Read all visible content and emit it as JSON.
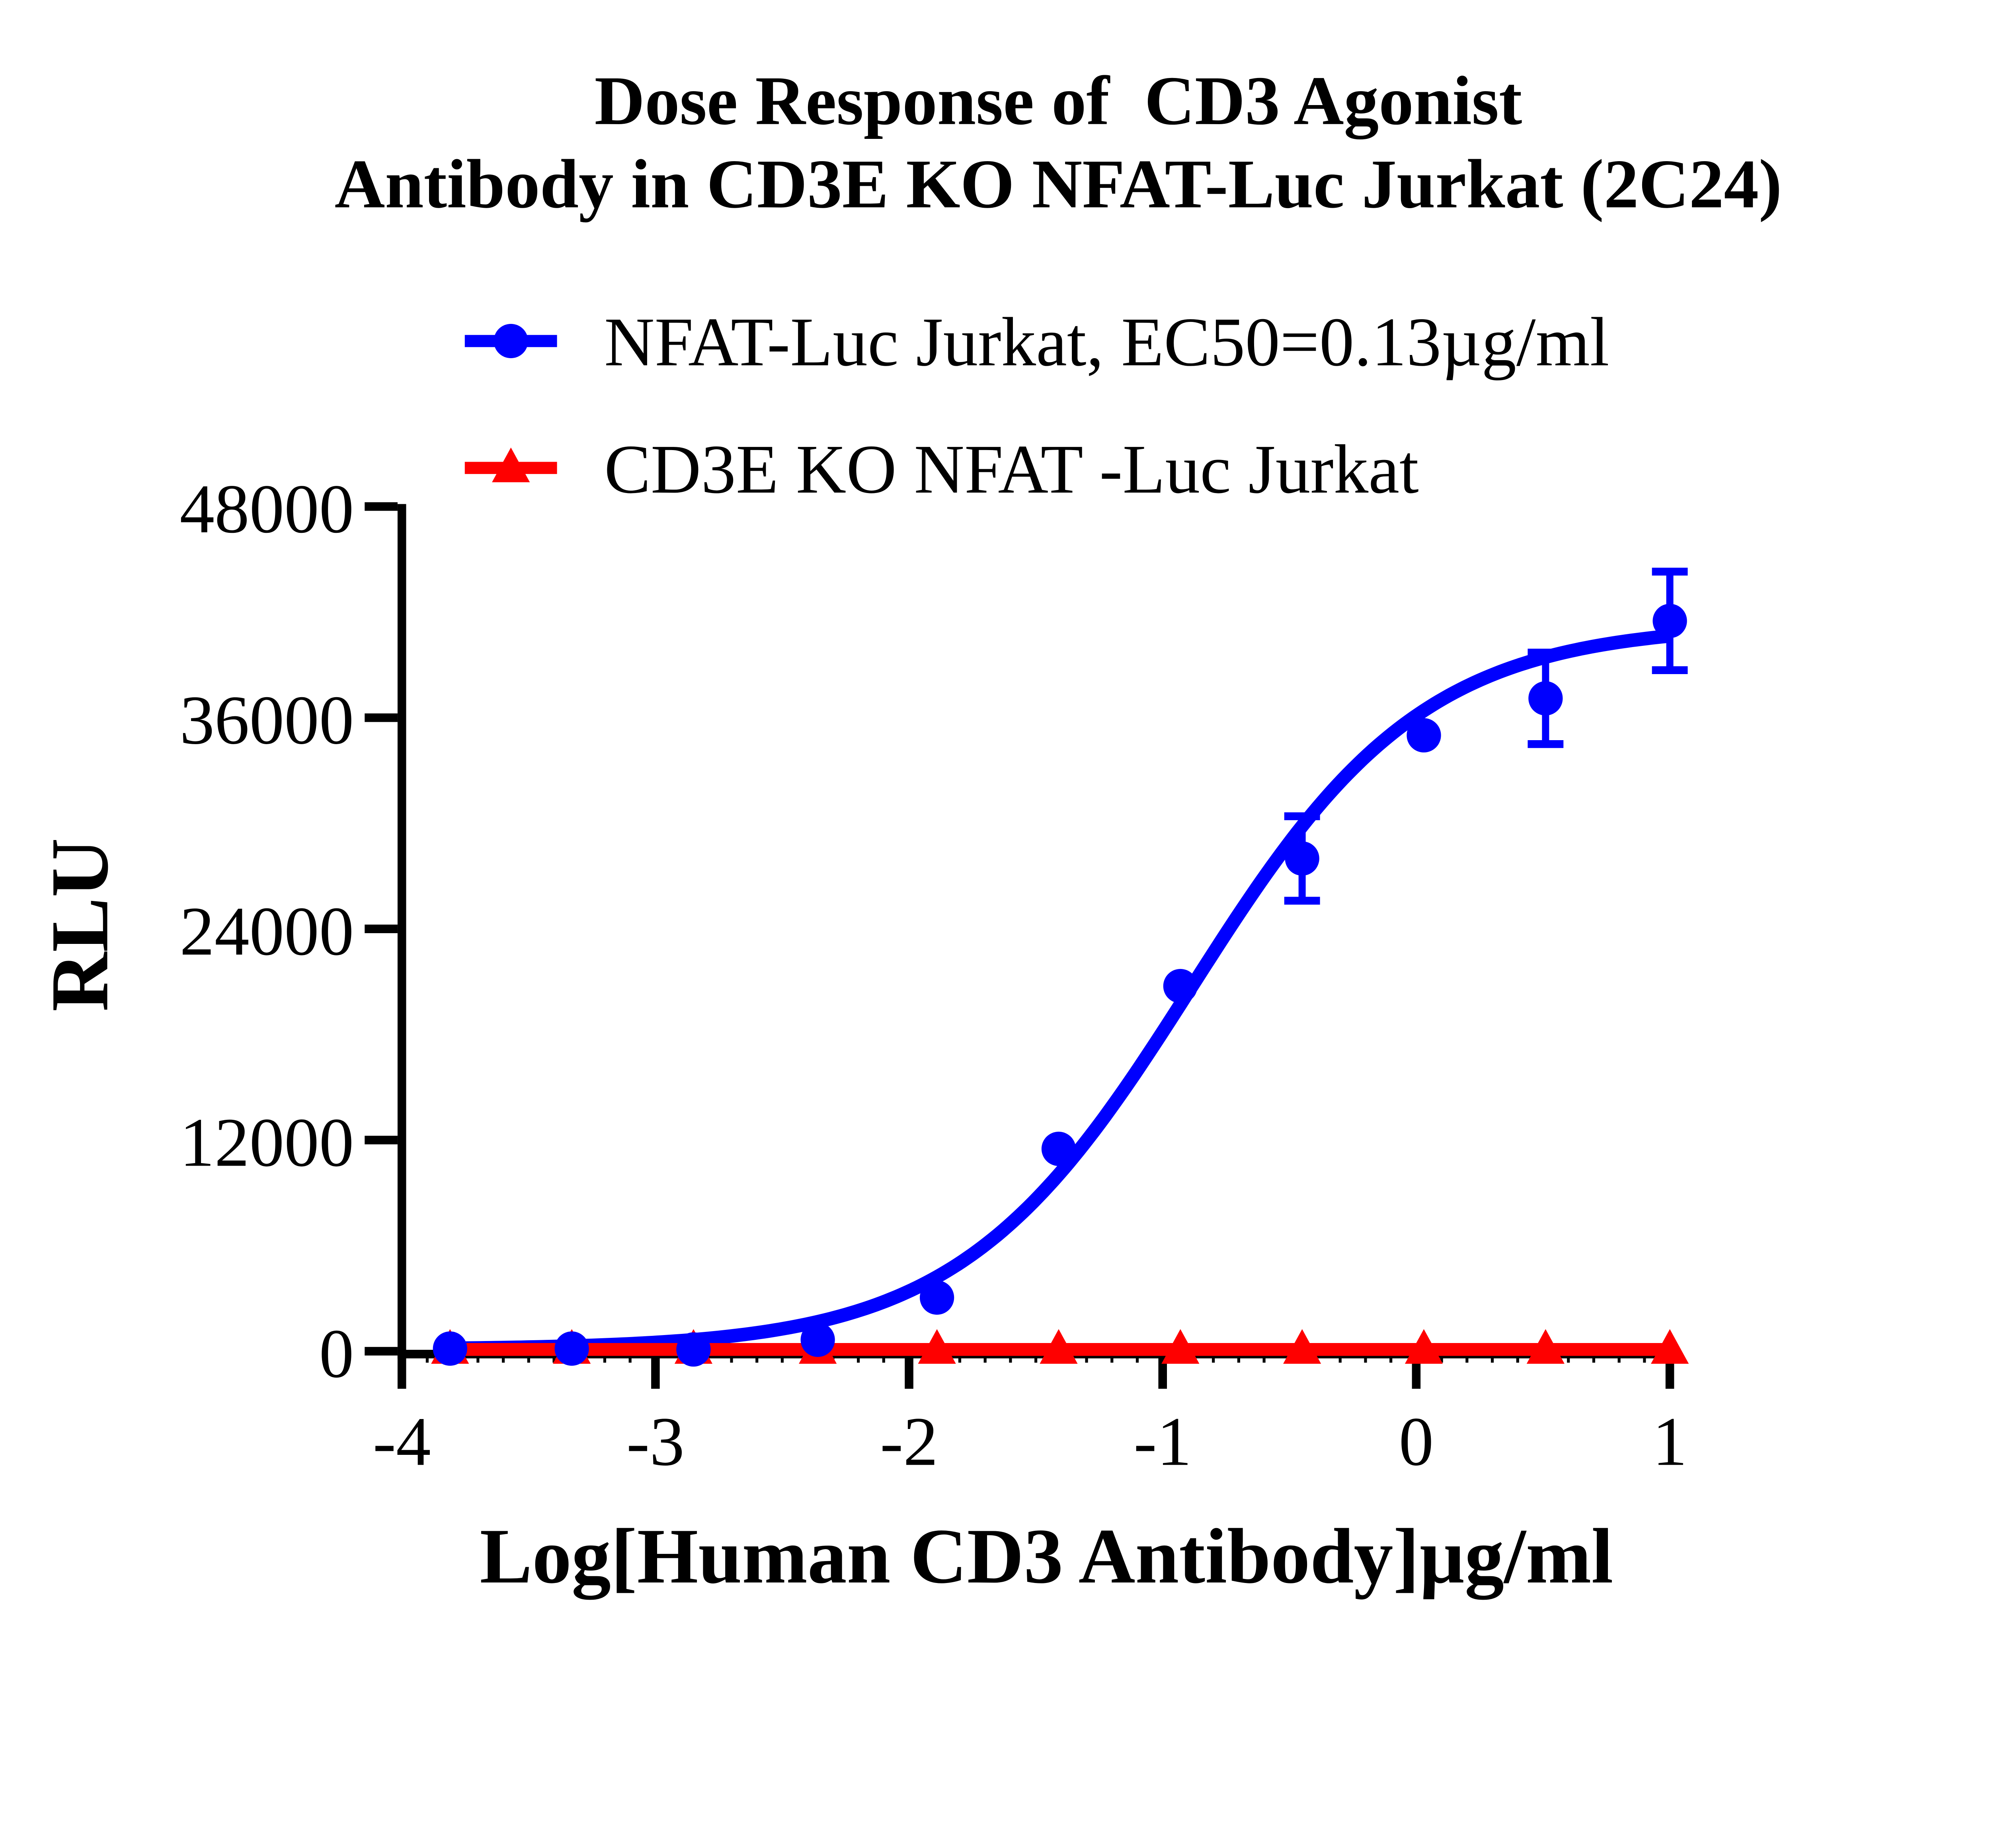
{
  "title": {
    "line1": "Dose Response of  CD3 Agonist",
    "line2": "Antibody in CD3E KO NFAT-Luc Jurkat (2C24)"
  },
  "legend": {
    "items": [
      {
        "label": "NFAT-Luc Jurkat, EC50=0.13µg/ml",
        "color": "#0000fe",
        "marker": "circle"
      },
      {
        "label": "CD3E KO NFAT -Luc Jurkat",
        "color": "#fe0000",
        "marker": "triangle"
      }
    ]
  },
  "chart_data": {
    "type": "scatter",
    "title": "Dose Response of CD3 Agonist Antibody in CD3E KO NFAT-Luc Jurkat (2C24)",
    "xlabel": "Log[Human CD3 Antibody]µg/ml",
    "ylabel": "RLU",
    "xlim": [
      -4,
      1.07
    ],
    "ylim": [
      0,
      48000
    ],
    "x_ticks": [
      -4,
      -3,
      -2,
      -1,
      0,
      1
    ],
    "x_tick_labels": [
      "-4",
      "-3",
      "-2",
      "-1",
      "0",
      "1"
    ],
    "x_minor_tick_step": 0.1,
    "y_ticks": [
      0,
      12000,
      24000,
      36000,
      48000
    ],
    "y_tick_labels": [
      "0",
      "12000",
      "24000",
      "36000",
      "48000"
    ],
    "grid": false,
    "legend_position": "top",
    "series": [
      {
        "name": "NFAT-Luc Jurkat, EC50=0.13µg/ml",
        "color": "#0000fe",
        "marker": "circle",
        "x": [
          -3.81,
          -3.33,
          -2.85,
          -2.36,
          -1.89,
          -1.41,
          -0.93,
          -0.45,
          0.03,
          0.51,
          1.0
        ],
        "y": [
          150,
          150,
          100,
          650,
          3050,
          11500,
          20750,
          28000,
          35000,
          37100,
          41500
        ],
        "err": [
          0,
          0,
          0,
          0,
          0,
          0,
          0,
          2400,
          0,
          2600,
          2800
        ],
        "fit": {
          "model": "4PL",
          "bottom": 100,
          "top": 41300,
          "logEC50": -0.886,
          "hill": 0.95,
          "ec50_label": "EC50=0.13µg/ml"
        }
      },
      {
        "name": "CD3E KO NFAT -Luc Jurkat",
        "color": "#fe0000",
        "marker": "triangle",
        "x": [
          -3.81,
          -3.33,
          -2.85,
          -2.36,
          -1.89,
          -1.41,
          -0.93,
          -0.45,
          0.03,
          0.51,
          1.0
        ],
        "y": [
          100,
          100,
          100,
          100,
          100,
          100,
          100,
          100,
          100,
          100,
          100
        ],
        "err": [
          0,
          0,
          0,
          0,
          0,
          0,
          0,
          0,
          0,
          0,
          0
        ],
        "fit": null
      }
    ]
  }
}
